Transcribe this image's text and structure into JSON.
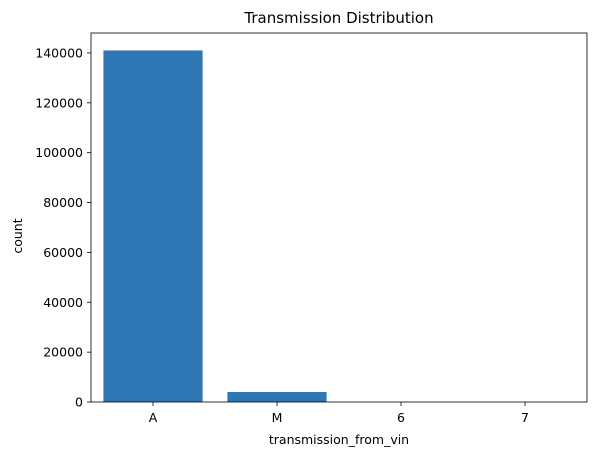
{
  "chart_data": {
    "type": "bar",
    "title": "Transmission Distribution",
    "xlabel": "transmission_from_vin",
    "ylabel": "count",
    "categories": [
      "A",
      "M",
      "6",
      "7"
    ],
    "values": [
      141000,
      4000,
      30,
      10
    ],
    "ylim": [
      0,
      148000
    ],
    "yticks": [
      0,
      20000,
      40000,
      60000,
      80000,
      100000,
      120000,
      140000
    ],
    "bar_color": "#2f77b4",
    "grid": false,
    "legend": "none"
  }
}
